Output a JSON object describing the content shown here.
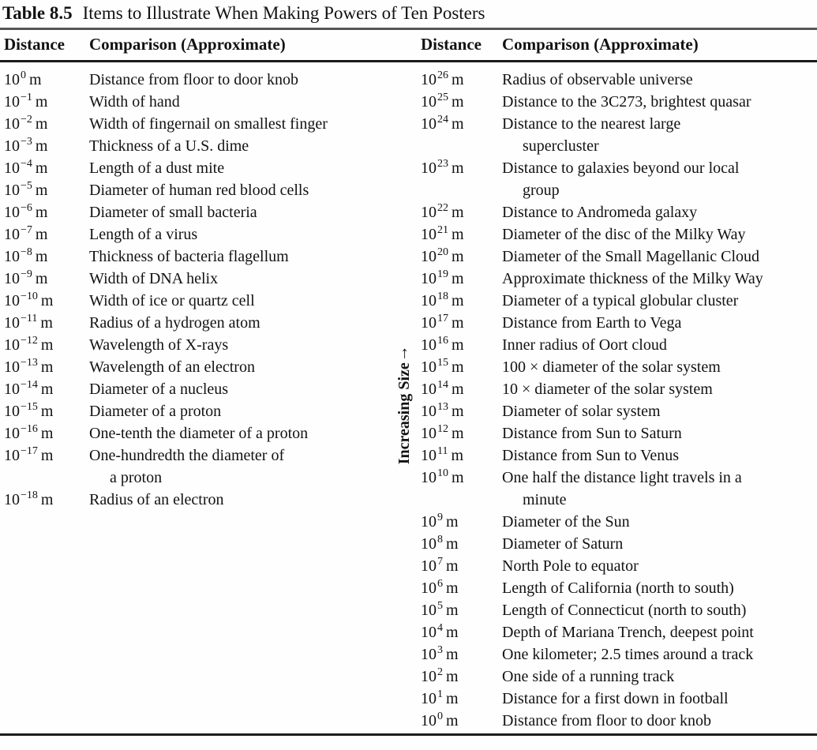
{
  "title": {
    "label": "Table 8.5",
    "text": "Items to Illustrate When Making Powers of Ten Posters"
  },
  "header": {
    "distance": "Distance",
    "comparison": "Comparison (Approximate)"
  },
  "power_base": "10",
  "unit": "m",
  "side_label": {
    "text": "Increasing Size",
    "arrow": "↑"
  },
  "left_rows": [
    {
      "exponent": "0",
      "comparison": "Distance from floor to door knob"
    },
    {
      "exponent": "−1",
      "comparison": "Width of hand"
    },
    {
      "exponent": "−2",
      "comparison": "Width of fingernail on smallest finger"
    },
    {
      "exponent": "−3",
      "comparison": "Thickness of a U.S. dime"
    },
    {
      "exponent": "−4",
      "comparison": "Length of a dust mite"
    },
    {
      "exponent": "−5",
      "comparison": "Diameter of human red blood cells"
    },
    {
      "exponent": "−6",
      "comparison": "Diameter of small bacteria"
    },
    {
      "exponent": "−7",
      "comparison": "Length of a virus"
    },
    {
      "exponent": "−8",
      "comparison": "Thickness of bacteria flagellum"
    },
    {
      "exponent": "−9",
      "comparison": "Width of DNA helix"
    },
    {
      "exponent": "−10",
      "comparison": "Width of ice or quartz cell"
    },
    {
      "exponent": "−11",
      "comparison": "Radius of a hydrogen atom"
    },
    {
      "exponent": "−12",
      "comparison": "Wavelength of X-rays"
    },
    {
      "exponent": "−13",
      "comparison": "Wavelength of an electron"
    },
    {
      "exponent": "−14",
      "comparison": "Diameter of a nucleus"
    },
    {
      "exponent": "−15",
      "comparison": "Diameter of a proton"
    },
    {
      "exponent": "−16",
      "comparison": "One-tenth the diameter of a proton"
    },
    {
      "exponent": "−17",
      "comparison": "One-hundredth the diameter of\na proton"
    },
    {
      "exponent": "−18",
      "comparison": "Radius of an electron"
    }
  ],
  "right_rows": [
    {
      "exponent": "26",
      "comparison": "Radius of observable universe"
    },
    {
      "exponent": "25",
      "comparison": "Distance to the 3C273, brightest quasar"
    },
    {
      "exponent": "24",
      "comparison": "Distance to the nearest large\nsupercluster"
    },
    {
      "exponent": "23",
      "comparison": "Distance to galaxies beyond our local\ngroup"
    },
    {
      "exponent": "22",
      "comparison": "Distance to Andromeda galaxy"
    },
    {
      "exponent": "21",
      "comparison": "Diameter of the disc of the Milky Way"
    },
    {
      "exponent": "20",
      "comparison": "Diameter of the Small Magellanic Cloud"
    },
    {
      "exponent": "19",
      "comparison": "Approximate thickness of the Milky Way"
    },
    {
      "exponent": "18",
      "comparison": "Diameter of a typical globular cluster"
    },
    {
      "exponent": "17",
      "comparison": "Distance from Earth to Vega"
    },
    {
      "exponent": "16",
      "comparison": "Inner radius of Oort cloud"
    },
    {
      "exponent": "15",
      "comparison": "100 × diameter of the solar system"
    },
    {
      "exponent": "14",
      "comparison": "10 × diameter of the solar system"
    },
    {
      "exponent": "13",
      "comparison": "Diameter of solar system"
    },
    {
      "exponent": "12",
      "comparison": "Distance from Sun to Saturn"
    },
    {
      "exponent": "11",
      "comparison": "Distance from Sun to Venus"
    },
    {
      "exponent": "10",
      "comparison": "One half the distance light travels in a\nminute"
    },
    {
      "exponent": "9",
      "comparison": "Diameter of the Sun"
    },
    {
      "exponent": "8",
      "comparison": "Diameter of Saturn"
    },
    {
      "exponent": "7",
      "comparison": "North Pole to equator"
    },
    {
      "exponent": "6",
      "comparison": "Length of California (north to south)"
    },
    {
      "exponent": "5",
      "comparison": "Length of Connecticut (north to south)"
    },
    {
      "exponent": "4",
      "comparison": "Depth of Mariana Trench, deepest point"
    },
    {
      "exponent": "3",
      "comparison": "One kilometer; 2.5 times around a track"
    },
    {
      "exponent": "2",
      "comparison": "One side of a running track"
    },
    {
      "exponent": "1",
      "comparison": "Distance for a first down in football"
    },
    {
      "exponent": "0",
      "comparison": "Distance from floor to door knob"
    }
  ]
}
